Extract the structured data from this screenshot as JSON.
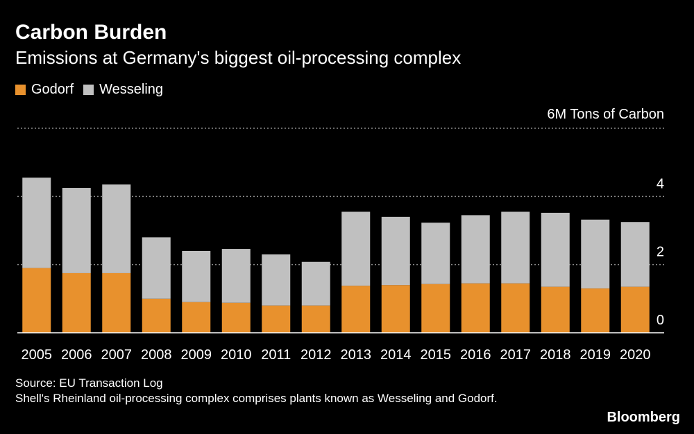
{
  "title": "Carbon Burden",
  "subtitle": "Emissions at Germany's biggest oil-processing complex",
  "legend": [
    {
      "label": "Godorf",
      "color": "#e8912d"
    },
    {
      "label": "Wesseling",
      "color": "#c0c0c0"
    }
  ],
  "footer": {
    "source": "Source: EU Transaction Log",
    "note": "Shell's Rheinland oil-processing complex comprises plants known as Wesseling and Godorf."
  },
  "brand": "Bloomberg",
  "chart_data": {
    "type": "bar",
    "stacked": true,
    "title": "Carbon Burden",
    "subtitle": "Emissions at Germany's biggest oil-processing complex",
    "ylabel": "6M Tons of Carbon",
    "ylim": [
      0,
      6
    ],
    "yticks": [
      0,
      2,
      4
    ],
    "top_tick_label": "6M Tons of Carbon",
    "categories": [
      "2005",
      "2006",
      "2007",
      "2008",
      "2009",
      "2010",
      "2011",
      "2012",
      "2013",
      "2014",
      "2015",
      "2016",
      "2017",
      "2018",
      "2019",
      "2020"
    ],
    "series": [
      {
        "name": "Godorf",
        "color": "#e8912d",
        "values": [
          1.9,
          1.75,
          1.75,
          1.0,
          0.9,
          0.88,
          0.8,
          0.8,
          1.38,
          1.4,
          1.43,
          1.45,
          1.45,
          1.35,
          1.3,
          1.35
        ]
      },
      {
        "name": "Wesseling",
        "color": "#c0c0c0",
        "values": [
          2.65,
          2.5,
          2.6,
          1.8,
          1.5,
          1.58,
          1.5,
          1.28,
          2.17,
          2.0,
          1.8,
          2.0,
          2.1,
          2.17,
          2.02,
          1.9
        ]
      }
    ]
  }
}
